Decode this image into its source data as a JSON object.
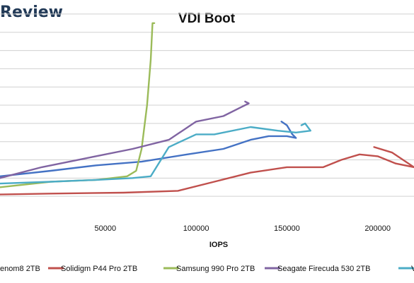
{
  "brand": "Review",
  "chart_data": {
    "type": "line",
    "title": "VDI Boot",
    "xlabel": "IOPS",
    "ylabel": "",
    "xlim": [
      -8000,
      220000
    ],
    "ylim": [
      0,
      11.5
    ],
    "x_ticks": [
      50000,
      100000,
      150000,
      200000
    ],
    "x_tick_labels": [
      "50000",
      "100000",
      "150000",
      "200000"
    ],
    "y_gridlines": [
      1,
      2,
      3,
      4,
      5,
      6,
      7,
      8,
      9,
      10,
      11
    ],
    "grid": true,
    "legend_position": "bottom",
    "series": [
      {
        "name": "...enom8 2TB",
        "legend_label": "enom8 2TB",
        "color": "#4472c4",
        "points": [
          [
            -8000,
            2.1
          ],
          [
            20000,
            2.4
          ],
          [
            45000,
            2.7
          ],
          [
            70000,
            2.9
          ],
          [
            95000,
            3.3
          ],
          [
            115000,
            3.6
          ],
          [
            130000,
            4.1
          ],
          [
            140000,
            4.3
          ],
          [
            150000,
            4.3
          ],
          [
            155000,
            4.2
          ],
          [
            153000,
            4.4
          ],
          [
            150000,
            4.9
          ],
          [
            147000,
            5.1
          ]
        ]
      },
      {
        "name": "Solidigm P44 Pro 2TB",
        "legend_label": "Solidigm P44 Pro 2TB",
        "color": "#c0504d",
        "points": [
          [
            -8000,
            1.1
          ],
          [
            20000,
            1.15
          ],
          [
            60000,
            1.2
          ],
          [
            90000,
            1.3
          ],
          [
            110000,
            1.8
          ],
          [
            130000,
            2.3
          ],
          [
            150000,
            2.6
          ],
          [
            170000,
            2.6
          ],
          [
            180000,
            3.0
          ],
          [
            190000,
            3.3
          ],
          [
            200000,
            3.2
          ],
          [
            210000,
            2.8
          ],
          [
            220000,
            2.6
          ],
          [
            208000,
            3.4
          ],
          [
            198000,
            3.7
          ]
        ]
      },
      {
        "name": "Samsung 990 Pro 2TB",
        "legend_label": "Samsung 990 Pro 2TB",
        "color": "#9bbb59",
        "points": [
          [
            -8000,
            1.5
          ],
          [
            20000,
            1.8
          ],
          [
            45000,
            1.9
          ],
          [
            62000,
            2.1
          ],
          [
            67000,
            2.4
          ],
          [
            70000,
            3.6
          ],
          [
            73000,
            6.0
          ],
          [
            75000,
            8.5
          ],
          [
            76000,
            10.5
          ],
          [
            77000,
            10.5
          ]
        ]
      },
      {
        "name": "Seagate Firecuda 530 2TB",
        "legend_label": "Seagate Firecuda 530 2TB",
        "color": "#8064a2",
        "points": [
          [
            -8000,
            2.0
          ],
          [
            15000,
            2.6
          ],
          [
            40000,
            3.1
          ],
          [
            65000,
            3.6
          ],
          [
            85000,
            4.1
          ],
          [
            100000,
            5.1
          ],
          [
            115000,
            5.4
          ],
          [
            125000,
            5.9
          ],
          [
            129000,
            6.1
          ],
          [
            127000,
            6.2
          ]
        ]
      },
      {
        "name": "...",
        "legend_label": "V",
        "color": "#4bacc6",
        "points": [
          [
            -8000,
            1.7
          ],
          [
            20000,
            1.8
          ],
          [
            45000,
            1.9
          ],
          [
            65000,
            2.0
          ],
          [
            75000,
            2.1
          ],
          [
            85000,
            3.7
          ],
          [
            100000,
            4.4
          ],
          [
            110000,
            4.4
          ],
          [
            130000,
            4.8
          ],
          [
            145000,
            4.6
          ],
          [
            155000,
            4.5
          ],
          [
            163000,
            4.6
          ],
          [
            160000,
            5.0
          ],
          [
            158000,
            4.9
          ]
        ]
      }
    ]
  }
}
